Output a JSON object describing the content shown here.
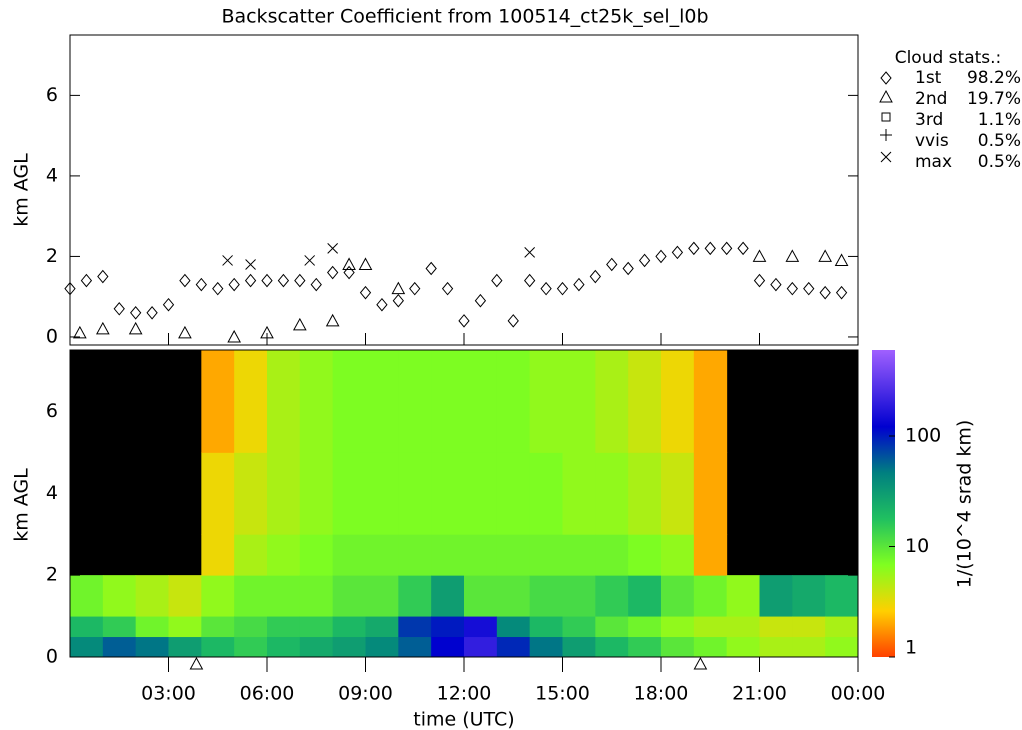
{
  "chart_data": [
    {
      "type": "scatter",
      "title": "Backscatter Coefficient from 100514_ct25k_sel_l0b",
      "ylabel": "km AGL",
      "xlim": [
        0,
        24
      ],
      "ylim": [
        -0.2,
        7.5
      ],
      "yticks": [
        0,
        2,
        4,
        6
      ],
      "legend_title": "Cloud stats.:",
      "legend": [
        {
          "name": "1st",
          "label": "98.2%"
        },
        {
          "name": "2nd",
          "label": "19.7%"
        },
        {
          "name": "3rd",
          "label": "1.1%"
        },
        {
          "name": "vvis",
          "label": "0.5%"
        },
        {
          "name": "max",
          "label": "0.5%"
        }
      ],
      "series": [
        {
          "marker": "diamond",
          "x": [
            0,
            0.5,
            1,
            1.5,
            2,
            2.5,
            3,
            3.5,
            4,
            4.5,
            5,
            5.5,
            6,
            6.5,
            7,
            7.5,
            8,
            8.5,
            9,
            9.5,
            10,
            10.5,
            11,
            11.5,
            12,
            12.5,
            13,
            13.5,
            14,
            14.5,
            15,
            15.5,
            16,
            16.5,
            17,
            17.5,
            18,
            18.5,
            19,
            19.5,
            20,
            20.5,
            21,
            21.5,
            22,
            22.5,
            23,
            23.5
          ],
          "values": [
            1.2,
            1.4,
            1.5,
            0.7,
            0.6,
            0.6,
            0.8,
            1.4,
            1.3,
            1.2,
            1.3,
            1.4,
            1.4,
            1.4,
            1.4,
            1.3,
            1.6,
            1.6,
            1.1,
            0.8,
            0.9,
            1.2,
            1.7,
            1.2,
            0.4,
            0.9,
            1.4,
            0.4,
            1.4,
            1.2,
            1.2,
            1.3,
            1.5,
            1.8,
            1.7,
            1.9,
            2.0,
            2.1,
            2.2,
            2.2,
            2.2,
            2.2,
            1.4,
            1.3,
            1.2,
            1.2,
            1.1,
            1.1
          ]
        },
        {
          "marker": "triangle",
          "x": [
            0.3,
            1,
            2,
            3.5,
            5,
            6,
            7,
            8,
            8.5,
            9,
            10,
            21,
            22,
            23,
            23.5
          ],
          "values": [
            0.1,
            0.2,
            0.2,
            0.1,
            0.0,
            0.1,
            0.3,
            0.4,
            1.8,
            1.8,
            1.2,
            2.0,
            2.0,
            2.0,
            1.9
          ]
        },
        {
          "marker": "cross",
          "x": [
            4.8,
            5.5,
            7.3,
            8,
            14
          ],
          "values": [
            1.9,
            1.8,
            1.9,
            2.2,
            2.1
          ]
        }
      ]
    },
    {
      "type": "heatmap",
      "ylabel": "km AGL",
      "xlabel": "time (UTC)",
      "colorbar_label": "1/(10^4 srad km)",
      "xlim": [
        0,
        24
      ],
      "ylim": [
        0,
        7.5
      ],
      "yticks": [
        0,
        2,
        4,
        6
      ],
      "xticks": [
        {
          "value": 3,
          "label": "03:00"
        },
        {
          "value": 6,
          "label": "06:00"
        },
        {
          "value": 9,
          "label": "09:00"
        },
        {
          "value": 12,
          "label": "12:00"
        },
        {
          "value": 15,
          "label": "15:00"
        },
        {
          "value": 18,
          "label": "18:00"
        },
        {
          "value": 21,
          "label": "21:00"
        },
        {
          "value": 24,
          "label": "00:00"
        }
      ],
      "clim": [
        1,
        600
      ],
      "log_color": true,
      "cticks": [
        1,
        10,
        100
      ],
      "sun_markers": [
        3.85,
        19.2
      ],
      "time_bins": [
        0,
        1,
        2,
        3,
        4,
        5,
        6,
        7,
        8,
        9,
        10,
        11,
        12,
        13,
        14,
        15,
        16,
        17,
        18,
        19,
        20,
        21,
        22,
        23,
        24
      ],
      "height_bins": [
        0,
        0.5,
        1,
        2,
        3,
        5,
        7.5
      ],
      "values": [
        [
          40,
          20,
          8,
          null,
          null,
          null
        ],
        [
          60,
          15,
          6,
          null,
          null,
          null
        ],
        [
          50,
          8,
          5,
          null,
          null,
          null
        ],
        [
          30,
          6,
          4,
          null,
          null,
          null
        ],
        [
          20,
          10,
          6,
          3,
          3,
          2
        ],
        [
          15,
          12,
          8,
          5,
          4,
          3
        ],
        [
          20,
          15,
          8,
          6,
          5,
          5
        ],
        [
          25,
          15,
          8,
          7,
          6,
          6
        ],
        [
          30,
          20,
          10,
          8,
          7,
          7
        ],
        [
          40,
          25,
          10,
          8,
          7,
          7
        ],
        [
          60,
          80,
          15,
          8,
          7,
          7
        ],
        [
          120,
          100,
          30,
          8,
          7,
          7
        ],
        [
          200,
          150,
          10,
          8,
          7,
          7
        ],
        [
          90,
          40,
          10,
          8,
          7,
          7
        ],
        [
          50,
          20,
          12,
          8,
          7,
          6
        ],
        [
          30,
          15,
          12,
          8,
          6,
          6
        ],
        [
          20,
          10,
          15,
          8,
          6,
          5
        ],
        [
          15,
          8,
          20,
          7,
          5,
          4
        ],
        [
          10,
          6,
          10,
          6,
          4,
          3
        ],
        [
          8,
          5,
          8,
          2,
          2,
          2
        ],
        [
          6,
          5,
          6,
          null,
          null,
          null
        ],
        [
          5,
          4,
          30,
          null,
          null,
          null
        ],
        [
          5,
          4,
          25,
          null,
          null,
          null
        ],
        [
          6,
          5,
          20,
          null,
          null,
          null
        ]
      ]
    }
  ]
}
